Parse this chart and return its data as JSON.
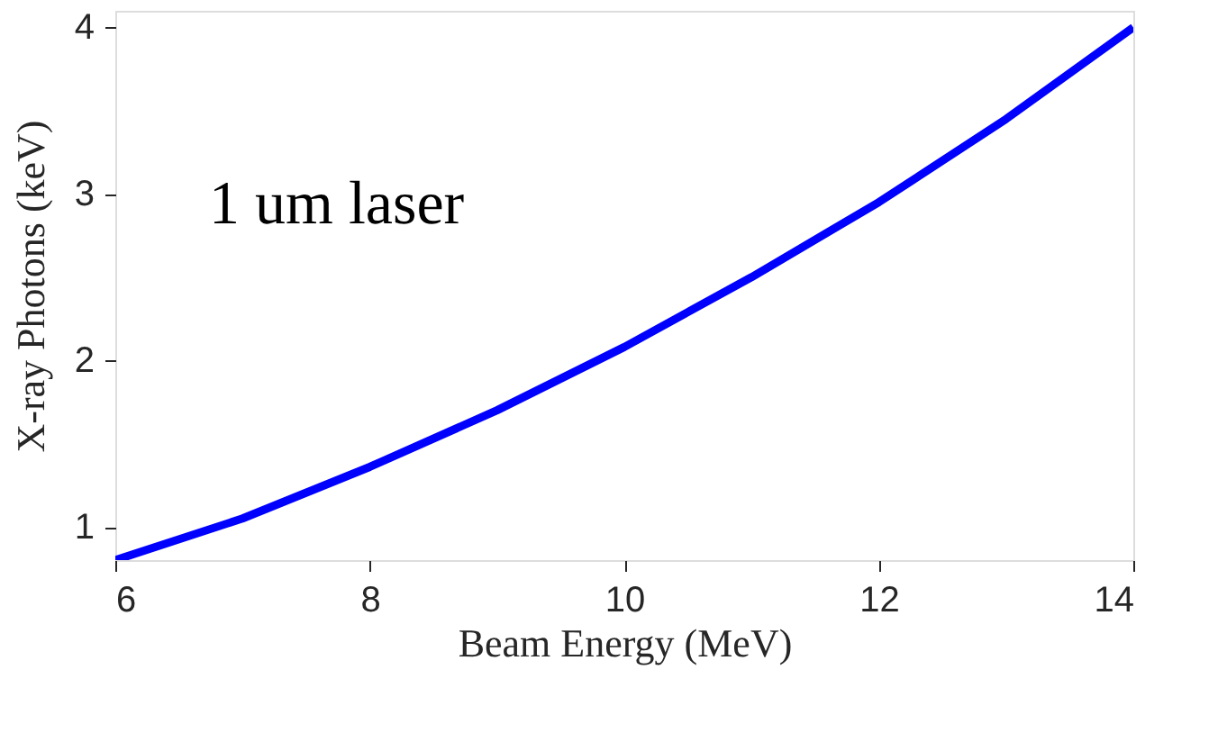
{
  "chart_data": {
    "type": "line",
    "xlabel": "Beam Energy (MeV)",
    "ylabel": "X-ray Photons (keV)",
    "x": [
      6,
      7,
      8,
      9,
      10,
      11,
      12,
      13,
      14
    ],
    "series": [
      {
        "color": "#0000ff",
        "values": [
          0.8,
          1.05,
          1.36,
          1.7,
          2.08,
          2.5,
          2.95,
          3.45,
          4.0
        ]
      }
    ],
    "xlim": [
      6,
      14
    ],
    "ylim": [
      0.8,
      4.1
    ],
    "xticks": [
      6,
      8,
      10,
      12,
      14
    ],
    "yticks": [
      1,
      2,
      3,
      4
    ],
    "annotations": [
      "1 um laser"
    ],
    "grid": false,
    "legend": false,
    "line_style": "solid",
    "marker": "none"
  }
}
